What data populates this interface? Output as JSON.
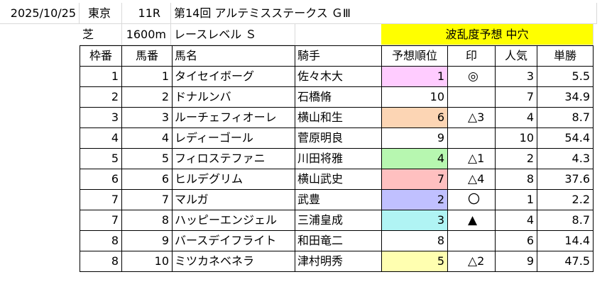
{
  "header": {
    "date": "2025/10/25",
    "venue": "東京",
    "race_number": "11R",
    "race_name": "第14回 アルテミスステークス ＧⅢ",
    "surface": "芝",
    "distance": "1600m",
    "race_level": "レースレベル Ｓ",
    "upset_prediction": "波乱度予想 中穴",
    "upset_bg_color": "#ffff00"
  },
  "columns": [
    "枠番",
    "馬番",
    "馬名",
    "騎手",
    "予想順位",
    "印",
    "人気",
    "単勝"
  ],
  "rows": [
    {
      "waku": "1",
      "umaban": "1",
      "horse": "タイセイボーグ",
      "jockey": "佐々木大",
      "rank": "1",
      "rank_color": "#ffccff",
      "mark": "◎",
      "mark_num": "",
      "pop": "3",
      "odds": "5.5"
    },
    {
      "waku": "2",
      "umaban": "2",
      "horse": "ドナルンバ",
      "jockey": "石橋脩",
      "rank": "10",
      "rank_color": "",
      "mark": "",
      "mark_num": "",
      "pop": "7",
      "odds": "34.9"
    },
    {
      "waku": "3",
      "umaban": "3",
      "horse": "ルーチェフィオーレ",
      "jockey": "横山和生",
      "rank": "6",
      "rank_color": "#fcd5b4",
      "mark": "△",
      "mark_num": "3",
      "pop": "4",
      "odds": "8.7"
    },
    {
      "waku": "4",
      "umaban": "4",
      "horse": "レディーゴール",
      "jockey": "菅原明良",
      "rank": "9",
      "rank_color": "",
      "mark": "",
      "mark_num": "",
      "pop": "10",
      "odds": "54.4"
    },
    {
      "waku": "5",
      "umaban": "5",
      "horse": "フィロステファニ",
      "jockey": "川田将雅",
      "rank": "4",
      "rank_color": "#b7f7b0",
      "mark": "△",
      "mark_num": "1",
      "pop": "2",
      "odds": "4.3"
    },
    {
      "waku": "6",
      "umaban": "6",
      "horse": "ヒルデグリム",
      "jockey": "横山武史",
      "rank": "7",
      "rank_color": "#ffc0c0",
      "mark": "△",
      "mark_num": "4",
      "pop": "8",
      "odds": "37.6"
    },
    {
      "waku": "7",
      "umaban": "7",
      "horse": "マルガ",
      "jockey": "武豊",
      "rank": "2",
      "rank_color": "#c0c0ff",
      "mark": "〇",
      "mark_num": "",
      "pop": "1",
      "odds": "2.2"
    },
    {
      "waku": "7",
      "umaban": "8",
      "horse": "ハッピーエンジェル",
      "jockey": "三浦皇成",
      "rank": "3",
      "rank_color": "#b0f4f4",
      "mark": "▲",
      "mark_num": "",
      "pop": "4",
      "odds": "8.7"
    },
    {
      "waku": "8",
      "umaban": "9",
      "horse": "バースデイフライト",
      "jockey": "和田竜二",
      "rank": "8",
      "rank_color": "",
      "mark": "",
      "mark_num": "",
      "pop": "6",
      "odds": "14.4"
    },
    {
      "waku": "8",
      "umaban": "10",
      "horse": "ミツカネベネラ",
      "jockey": "津村明秀",
      "rank": "5",
      "rank_color": "#ffffb0",
      "mark": "△",
      "mark_num": "2",
      "pop": "9",
      "odds": "47.5"
    }
  ]
}
